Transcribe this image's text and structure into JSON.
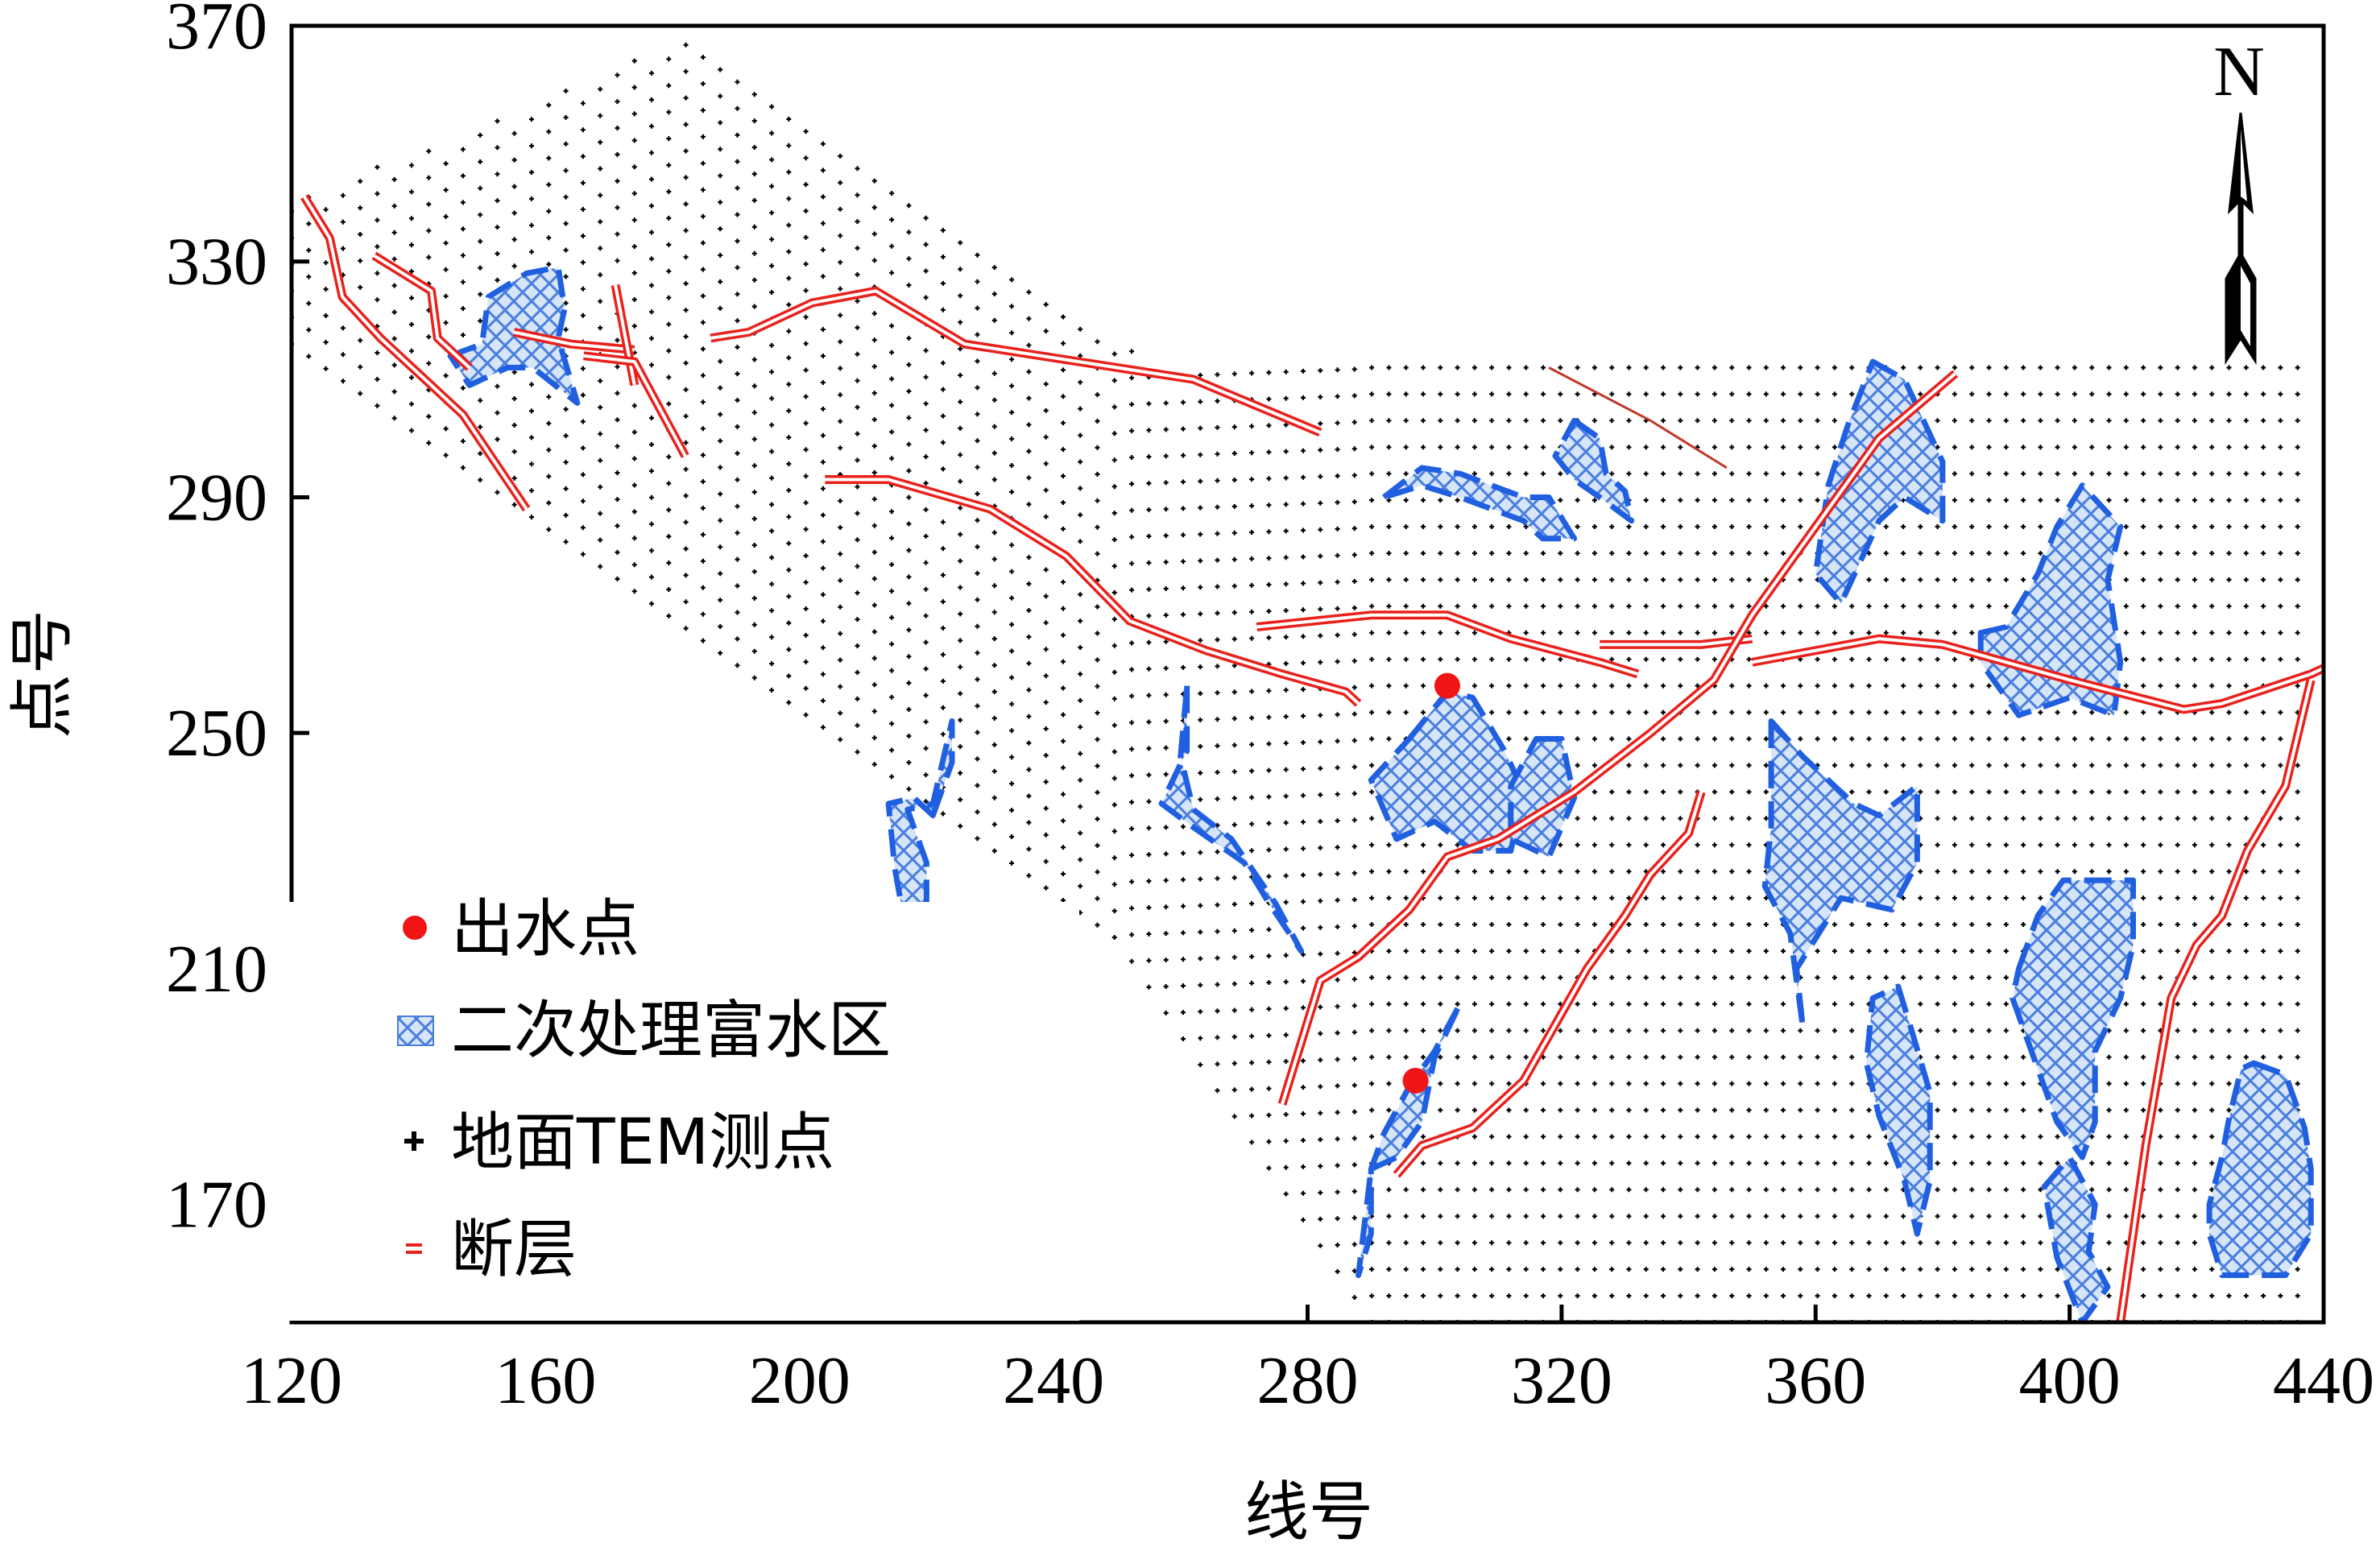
{
  "map": {
    "xlabel": "线号",
    "ylabel": "点号",
    "x_ticks": [
      120,
      160,
      200,
      240,
      280,
      320,
      360,
      400,
      440
    ],
    "y_ticks": [
      370,
      330,
      290,
      250,
      210,
      170
    ],
    "x_range": [
      120,
      440
    ],
    "y_range": [
      150,
      370
    ],
    "north_label": "N"
  },
  "legend": {
    "items": [
      {
        "key": "water_outlet",
        "label": "出水点"
      },
      {
        "key": "water_rich_zone",
        "label": "二次处理富水区"
      },
      {
        "key": "tem_points",
        "label": "地面TEM测点"
      },
      {
        "key": "fault",
        "label": "断层"
      }
    ]
  },
  "colors": {
    "fault": "#e8211c",
    "zone_stroke": "#1f5fe0",
    "zone_fill": "#c9dcf6",
    "water_point": "#f01414",
    "survey_point": "#000000"
  },
  "survey_extent": {
    "x_start": 120,
    "x_end": 438,
    "x_step": 2.7,
    "y_step": 4.5,
    "top_boundary": [
      [
        120,
        340
      ],
      [
        185,
        369
      ],
      [
        255,
        313
      ],
      [
        438,
        313
      ]
    ],
    "bottom_boundary": [
      [
        120,
        316
      ],
      [
        250,
        215
      ],
      [
        290,
        150
      ],
      [
        438,
        150
      ]
    ]
  },
  "faults": [
    [
      [
        122,
        341
      ],
      [
        126,
        334
      ],
      [
        128,
        324
      ],
      [
        134,
        317
      ],
      [
        147,
        304
      ],
      [
        157,
        288
      ]
    ],
    [
      [
        133,
        331
      ],
      [
        142,
        325
      ],
      [
        143,
        317
      ],
      [
        148,
        312
      ]
    ],
    [
      [
        155,
        318
      ],
      [
        164,
        316
      ],
      [
        174,
        315
      ]
    ],
    [
      [
        171,
        326
      ],
      [
        174,
        309
      ]
    ],
    [
      [
        166,
        314
      ],
      [
        174,
        313
      ],
      [
        182,
        297
      ]
    ],
    [
      [
        186,
        317
      ],
      [
        192,
        318
      ],
      [
        202,
        323
      ],
      [
        212,
        325
      ],
      [
        226,
        316
      ],
      [
        250,
        312
      ],
      [
        262,
        310
      ],
      [
        282,
        301
      ]
    ],
    [
      [
        204,
        293
      ],
      [
        214,
        293
      ],
      [
        230,
        288
      ],
      [
        242,
        280
      ],
      [
        252,
        269
      ],
      [
        264,
        264
      ],
      [
        276,
        260
      ],
      [
        286,
        257
      ],
      [
        288,
        255
      ]
    ],
    [
      [
        272,
        268
      ],
      [
        290,
        270
      ],
      [
        302,
        270
      ],
      [
        312,
        266
      ],
      [
        326,
        262
      ],
      [
        332,
        260
      ]
    ],
    [
      [
        326,
        265
      ],
      [
        342,
        265
      ],
      [
        350,
        266
      ]
    ],
    [
      [
        350,
        262
      ],
      [
        370,
        266
      ],
      [
        380,
        265
      ],
      [
        400,
        259
      ],
      [
        418,
        254
      ],
      [
        424,
        255
      ],
      [
        438,
        260
      ],
      [
        440,
        261
      ]
    ],
    [
      [
        276,
        187
      ],
      [
        282,
        208
      ],
      [
        288,
        212
      ],
      [
        296,
        220
      ],
      [
        302,
        229
      ],
      [
        310,
        232
      ],
      [
        322,
        240
      ],
      [
        334,
        250
      ],
      [
        344,
        259
      ],
      [
        350,
        270
      ],
      [
        360,
        285
      ],
      [
        370,
        300
      ],
      [
        382,
        311
      ]
    ],
    [
      [
        294,
        175
      ],
      [
        298,
        180
      ],
      [
        306,
        183
      ],
      [
        314,
        191
      ],
      [
        324,
        210
      ],
      [
        330,
        219
      ],
      [
        334,
        226
      ],
      [
        340,
        233
      ],
      [
        342,
        240
      ]
    ],
    [
      [
        408,
        150
      ],
      [
        412,
        180
      ],
      [
        416,
        205
      ],
      [
        420,
        214
      ],
      [
        424,
        219
      ],
      [
        428,
        230
      ],
      [
        434,
        241
      ],
      [
        438,
        259
      ]
    ]
  ],
  "thin_fault": [
    [
      318,
      312
    ],
    [
      334,
      303
    ],
    [
      346,
      295
    ]
  ],
  "zones": [
    [
      [
        145,
        314
      ],
      [
        150,
        316
      ],
      [
        151,
        324
      ],
      [
        157,
        328
      ],
      [
        162,
        329
      ],
      [
        163,
        322
      ],
      [
        162,
        317
      ],
      [
        165,
        306
      ],
      [
        158,
        312
      ],
      [
        154,
        312
      ],
      [
        148,
        309
      ],
      [
        145,
        314
      ]
    ],
    [
      [
        221,
        236
      ],
      [
        224,
        245
      ],
      [
        224,
        252
      ],
      [
        221,
        238
      ],
      [
        217,
        237
      ],
      [
        220,
        228
      ],
      [
        220,
        218
      ],
      [
        216,
        221
      ],
      [
        215,
        227
      ],
      [
        214,
        238
      ],
      [
        218,
        239
      ],
      [
        221,
        236
      ]
    ],
    [
      [
        261,
        258
      ],
      [
        261,
        247
      ],
      [
        257,
        238
      ],
      [
        262,
        234
      ],
      [
        270,
        228
      ],
      [
        274,
        221
      ],
      [
        279,
        213
      ],
      [
        275,
        221
      ],
      [
        268,
        232
      ],
      [
        262,
        237
      ],
      [
        260,
        246
      ],
      [
        261,
        258
      ]
    ],
    [
      [
        292,
        290
      ],
      [
        298,
        295
      ],
      [
        304,
        294
      ],
      [
        314,
        290
      ],
      [
        318,
        290
      ],
      [
        322,
        283
      ],
      [
        317,
        283
      ],
      [
        314,
        286
      ],
      [
        304,
        290
      ],
      [
        298,
        292
      ],
      [
        292,
        290
      ]
    ],
    [
      [
        322,
        303
      ],
      [
        326,
        300
      ],
      [
        327,
        294
      ],
      [
        330,
        291
      ],
      [
        331,
        286
      ],
      [
        326,
        290
      ],
      [
        322,
        293
      ],
      [
        319,
        297
      ],
      [
        322,
        303
      ]
    ],
    [
      [
        296,
        249
      ],
      [
        302,
        257
      ],
      [
        306,
        256
      ],
      [
        311,
        247
      ],
      [
        314,
        240
      ],
      [
        312,
        230
      ],
      [
        306,
        230
      ],
      [
        300,
        235
      ],
      [
        294,
        232
      ],
      [
        290,
        242
      ],
      [
        296,
        249
      ]
    ],
    [
      [
        316,
        249
      ],
      [
        320,
        249
      ],
      [
        322,
        239
      ],
      [
        318,
        229
      ],
      [
        312,
        232
      ],
      [
        312,
        241
      ],
      [
        316,
        249
      ]
    ],
    [
      [
        353,
        252
      ],
      [
        358,
        246
      ],
      [
        366,
        238
      ],
      [
        370,
        236
      ],
      [
        376,
        241
      ],
      [
        376,
        228
      ],
      [
        372,
        220
      ],
      [
        364,
        222
      ],
      [
        357,
        210
      ],
      [
        358,
        200
      ],
      [
        356,
        216
      ],
      [
        352,
        224
      ],
      [
        353,
        234
      ],
      [
        353,
        252
      ]
    ],
    [
      [
        369,
        313
      ],
      [
        374,
        310
      ],
      [
        377,
        303
      ],
      [
        380,
        296
      ],
      [
        380,
        286
      ],
      [
        374,
        290
      ],
      [
        370,
        286
      ],
      [
        367,
        279
      ],
      [
        364,
        272
      ],
      [
        360,
        277
      ],
      [
        362,
        292
      ],
      [
        365,
        302
      ],
      [
        369,
        313
      ]
    ],
    [
      [
        386,
        267
      ],
      [
        390,
        268
      ],
      [
        395,
        277
      ],
      [
        398,
        285
      ],
      [
        402,
        292
      ],
      [
        408,
        285
      ],
      [
        406,
        276
      ],
      [
        408,
        262
      ],
      [
        407,
        253
      ],
      [
        400,
        256
      ],
      [
        392,
        253
      ],
      [
        386,
        262
      ],
      [
        386,
        267
      ]
    ],
    [
      [
        373,
        207
      ],
      [
        375,
        200
      ],
      [
        378,
        189
      ],
      [
        378,
        174
      ],
      [
        376,
        165
      ],
      [
        374,
        174
      ],
      [
        370,
        185
      ],
      [
        368,
        194
      ],
      [
        369,
        205
      ],
      [
        373,
        207
      ]
    ],
    [
      [
        392,
        210
      ],
      [
        395,
        219
      ],
      [
        399,
        225
      ],
      [
        410,
        225
      ],
      [
        410,
        214
      ],
      [
        408,
        205
      ],
      [
        404,
        196
      ],
      [
        404,
        184
      ],
      [
        402,
        178
      ],
      [
        398,
        184
      ],
      [
        394,
        196
      ],
      [
        391,
        205
      ],
      [
        392,
        210
      ]
    ],
    [
      [
        396,
        173
      ],
      [
        400,
        178
      ],
      [
        404,
        170
      ],
      [
        403,
        162
      ],
      [
        406,
        156
      ],
      [
        402,
        150
      ],
      [
        398,
        161
      ],
      [
        396,
        173
      ]
    ],
    [
      [
        429,
        194
      ],
      [
        434,
        192
      ],
      [
        437,
        183
      ],
      [
        438,
        176
      ],
      [
        438,
        165
      ],
      [
        434,
        158
      ],
      [
        424,
        158
      ],
      [
        422,
        165
      ],
      [
        422,
        170
      ],
      [
        424,
        178
      ],
      [
        425,
        184
      ],
      [
        427,
        193
      ],
      [
        429,
        194
      ]
    ],
    [
      [
        290,
        176
      ],
      [
        294,
        178
      ],
      [
        298,
        184
      ],
      [
        300,
        195
      ],
      [
        304,
        204
      ],
      [
        300,
        196
      ],
      [
        296,
        190
      ],
      [
        292,
        182
      ],
      [
        290,
        176
      ],
      [
        290,
        165
      ],
      [
        288,
        158
      ],
      [
        290,
        176
      ]
    ]
  ],
  "water_points": [
    [
      302,
      258
    ],
    [
      297,
      191
    ]
  ]
}
